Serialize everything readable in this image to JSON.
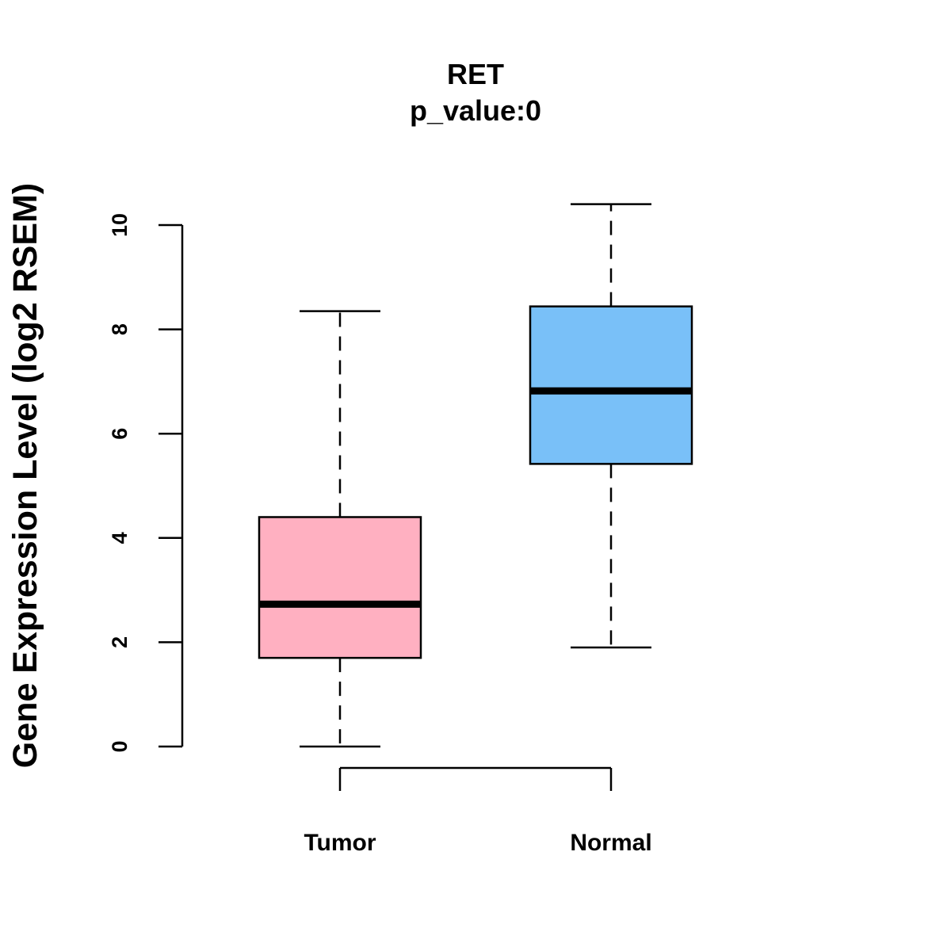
{
  "chart_data": {
    "type": "box",
    "title": "RET",
    "subtitle": "p_value:0",
    "xlabel": "",
    "ylabel": "Gene Expression Level (log2 RSEM)",
    "ylim": [
      0,
      10
    ],
    "yticks": [
      0,
      2,
      4,
      6,
      8,
      10
    ],
    "categories": [
      "Tumor",
      "Normal"
    ],
    "boxes": [
      {
        "name": "Tumor",
        "whisker_low": 0.0,
        "q1": 1.7,
        "median": 2.73,
        "q3": 4.4,
        "whisker_high": 8.35,
        "color": "#FFB0C1"
      },
      {
        "name": "Normal",
        "whisker_low": 1.9,
        "q1": 5.42,
        "median": 6.82,
        "q3": 8.44,
        "whisker_high": 10.4,
        "color": "#79C0F8"
      }
    ],
    "grid": false,
    "significance_bracket": [
      "Tumor",
      "Normal"
    ]
  }
}
